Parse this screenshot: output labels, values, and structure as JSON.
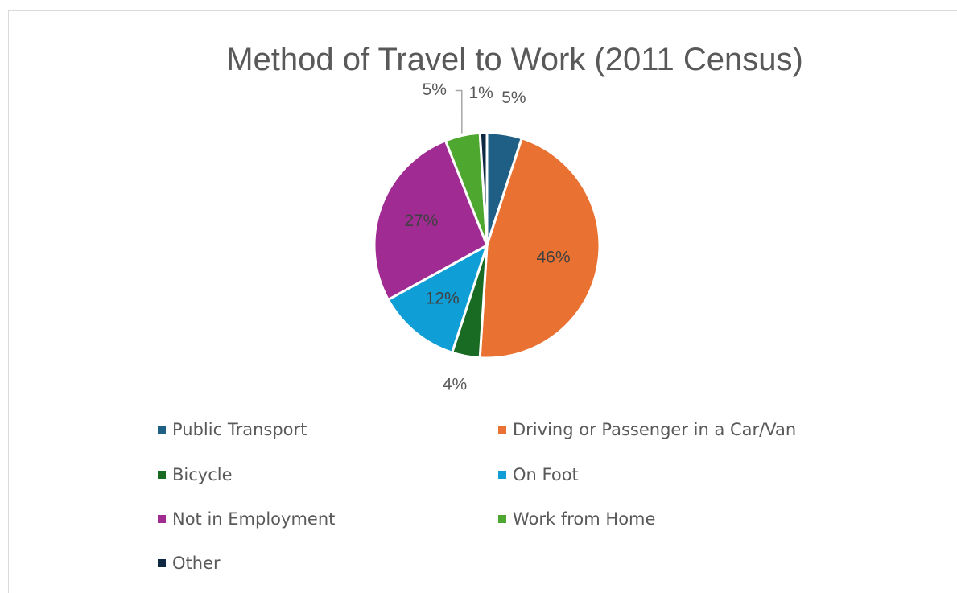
{
  "chart_data": {
    "type": "pie",
    "title": "Method of Travel to Work (2011 Census)",
    "categories": [
      "Public Transport",
      "Driving or Passenger in a Car/Van",
      "Bicycle",
      "On Foot",
      "Not in Employment",
      "Work from Home",
      "Other"
    ],
    "values": [
      5,
      46,
      4,
      12,
      27,
      5,
      1
    ],
    "labels": [
      "5%",
      "46%",
      "4%",
      "12%",
      "27%",
      "5%",
      "1%"
    ],
    "colors": [
      "#1f5f86",
      "#e97132",
      "#196b24",
      "#0f9ed5",
      "#a02b93",
      "#4ea72e",
      "#0e2841"
    ],
    "legend_position": "bottom",
    "start_angle_deg": 0,
    "direction": "clockwise"
  }
}
